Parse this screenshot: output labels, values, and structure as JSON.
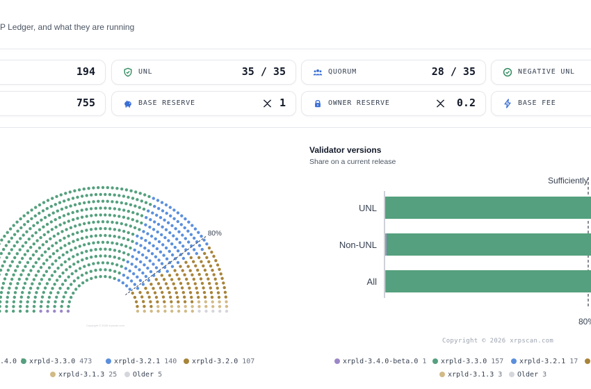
{
  "header": {
    "subtitle": "P Ledger, and what they are running"
  },
  "colors": {
    "green": "#55a07e",
    "blue": "#5b8fdc",
    "brown": "#a8843a",
    "tan": "#d2ba87",
    "purple": "#9b87c7",
    "grey": "#d5d6dc"
  },
  "stats": [
    {
      "label": "",
      "value": "194",
      "icon": ""
    },
    {
      "label": "UNL",
      "value": "35 / 35",
      "icon": "shield-icon"
    },
    {
      "label": "QUORUM",
      "value": "28 / 35",
      "icon": "users-icon"
    },
    {
      "label": "NEGATIVE UNL",
      "value": "",
      "icon": "check-circle-icon"
    },
    {
      "label": "",
      "value": "755",
      "icon": ""
    },
    {
      "label": "BASE RESERVE",
      "value": "1",
      "icon": "piggy-bank-icon"
    },
    {
      "label": "OWNER RESERVE",
      "value": "0.2",
      "icon": "lock-icon"
    },
    {
      "label": "BASE FEE",
      "value": "",
      "icon": "bolt-icon"
    }
  ],
  "parliament": {
    "threshold_label": "80%",
    "copyright": "Copyright © 2026 xrpscan.com",
    "legend": [
      {
        "name": ".4.0",
        "count": "5",
        "color": "#9b87c7"
      },
      {
        "name": "xrpld-3.3.0",
        "count": "473",
        "color": "#55a07e"
      },
      {
        "name": "xrpld-3.2.1",
        "count": "140",
        "color": "#5b8fdc"
      },
      {
        "name": "xrpld-3.2.0",
        "count": "107",
        "color": "#a8843a"
      },
      {
        "name": "xrpld-3.1.3",
        "count": "25",
        "color": "#d2ba87"
      },
      {
        "name": "Older",
        "count": "5",
        "color": "#d5d6dc"
      }
    ]
  },
  "versions": {
    "title": "Validator versions",
    "subtitle": "Share on a current release",
    "threshold_label": "Sufficiently",
    "threshold_value": "80%",
    "copyright": "Copyright © 2026 xrpscan.com",
    "legend": [
      {
        "name": "xrpld-3.4.0-beta.0",
        "count": "1",
        "color": "#9b87c7"
      },
      {
        "name": "xrpld-3.3.0",
        "count": "157",
        "color": "#55a07e"
      },
      {
        "name": "xrpld-3.2.1",
        "count": "17",
        "color": "#5b8fdc"
      },
      {
        "name": "",
        "count": "",
        "color": "#a8843a"
      },
      {
        "name": "xrpld-3.1.3",
        "count": "3",
        "color": "#d2ba87"
      },
      {
        "name": "Older",
        "count": "3",
        "color": "#d5d6dc"
      }
    ]
  },
  "chart_data": {
    "type": "bar",
    "title": "Validator versions",
    "subtitle": "Share on a current release",
    "categories": [
      "UNL",
      "Non-UNL",
      "All"
    ],
    "series": [
      {
        "name": "xrpld-3.4.0-beta.0",
        "values": [
          0,
          0.5,
          0.2
        ]
      },
      {
        "name": "xrpld-3.3.0",
        "values": [
          100,
          93,
          95
        ]
      },
      {
        "name": "xrpld-3.2.1",
        "values": [
          0,
          6.5,
          4.8
        ]
      }
    ],
    "threshold": 80,
    "xlim": [
      0,
      100
    ]
  }
}
